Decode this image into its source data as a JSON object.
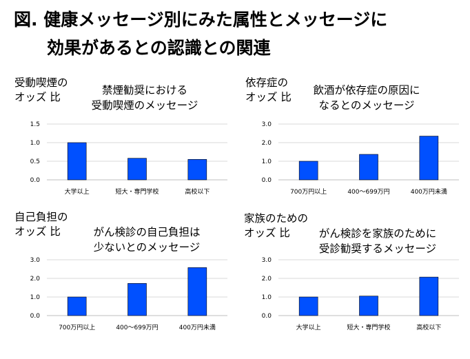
{
  "figure": {
    "title_line1": "図. 健康メッセージ別にみた属性とメッセージに",
    "title_line2": "効果があるとの認識との関連"
  },
  "colors": {
    "bar": "#0050ff",
    "bar_edge": "#000000",
    "grid": "#d9d9d9",
    "axis": "#bfbfbf"
  },
  "chart_data": [
    {
      "type": "bar",
      "ylabel_lines": [
        "受動喫煙の",
        "オッズ 比"
      ],
      "title_lines": [
        "禁煙勧奨における",
        "受動喫煙のメッセージ"
      ],
      "categories": [
        "大学以上",
        "短大・専門学校",
        "高校以下"
      ],
      "values": [
        1.0,
        0.58,
        0.55
      ],
      "ylim": [
        0,
        1.5
      ],
      "yticks": [
        "0.0",
        "0.5",
        "1.0",
        "1.5"
      ],
      "grid": true
    },
    {
      "type": "bar",
      "ylabel_lines": [
        "依存症の",
        "オッズ 比"
      ],
      "title_lines": [
        "飲酒が依存症の原因に",
        "なるとのメッセージ"
      ],
      "categories": [
        "700万円以上",
        "400～699万円",
        "400万円未満"
      ],
      "values": [
        1.0,
        1.37,
        2.35
      ],
      "ylim": [
        0,
        3.0
      ],
      "yticks": [
        "0.0",
        "1.0",
        "2.0",
        "3.0"
      ],
      "grid": true
    },
    {
      "type": "bar",
      "ylabel_lines": [
        "自己負担の",
        "オッズ 比"
      ],
      "title_lines": [
        "がん検診の自己負担は",
        "少ないとのメッセージ"
      ],
      "categories": [
        "700万円以上",
        "400～699万円",
        "400万円未満"
      ],
      "values": [
        1.0,
        1.73,
        2.58
      ],
      "ylim": [
        0,
        3.0
      ],
      "yticks": [
        "0.0",
        "1.0",
        "2.0",
        "3.0"
      ],
      "grid": true
    },
    {
      "type": "bar",
      "ylabel_lines": [
        "家族のための",
        "オッズ 比"
      ],
      "title_lines": [
        "がん検診を家族のために",
        "受診勧奨するメッセージ"
      ],
      "categories": [
        "大学以上",
        "短大・専門学校",
        "高校以下"
      ],
      "values": [
        1.0,
        1.05,
        2.07
      ],
      "ylim": [
        0,
        3.0
      ],
      "yticks": [
        "0.0",
        "1.0",
        "2.0",
        "3.0"
      ],
      "grid": true
    }
  ]
}
